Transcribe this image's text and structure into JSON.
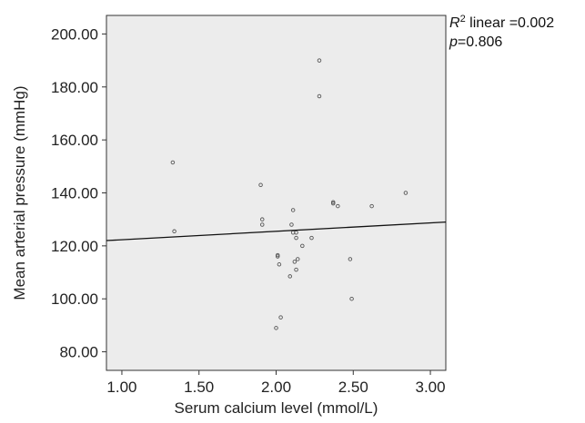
{
  "chart_data": {
    "type": "scatter",
    "title": "",
    "xlabel": "Serum calcium level (mmol/L)",
    "ylabel": "Mean arterial pressure (mmHg)",
    "xlim": [
      0.9,
      3.1
    ],
    "ylim": [
      73.0,
      207.0
    ],
    "x_ticks": [
      1.0,
      1.5,
      2.0,
      2.5,
      3.0
    ],
    "x_tick_labels": [
      "1.00",
      "1.50",
      "2.00",
      "2.50",
      "3.00"
    ],
    "y_ticks": [
      80,
      100,
      120,
      140,
      160,
      180,
      200
    ],
    "y_tick_labels": [
      "80.00",
      "100.00",
      "120.00",
      "140.00",
      "160.00",
      "180.00",
      "200.00"
    ],
    "grid": false,
    "plot_background": "#ececec",
    "point_color": "#555555",
    "fit_line_color": "#111111",
    "fit_line": {
      "x": [
        0.9,
        3.1
      ],
      "y": [
        122.0,
        129.0
      ]
    },
    "annotation": {
      "r2_symbol": "R",
      "r2_superscript": "2",
      "r2_text": " linear =0.002",
      "p_symbol": "p",
      "p_text": "=0.806"
    },
    "points": [
      {
        "x": 1.33,
        "y": 151.5
      },
      {
        "x": 1.34,
        "y": 125.5
      },
      {
        "x": 1.9,
        "y": 143.0
      },
      {
        "x": 1.91,
        "y": 130.0
      },
      {
        "x": 1.91,
        "y": 128.0
      },
      {
        "x": 2.01,
        "y": 116.5
      },
      {
        "x": 2.01,
        "y": 116.0
      },
      {
        "x": 2.02,
        "y": 113.0
      },
      {
        "x": 2.0,
        "y": 89.0
      },
      {
        "x": 2.03,
        "y": 93.0
      },
      {
        "x": 2.09,
        "y": 108.5
      },
      {
        "x": 2.1,
        "y": 128.0
      },
      {
        "x": 2.11,
        "y": 133.5
      },
      {
        "x": 2.11,
        "y": 125.0
      },
      {
        "x": 2.13,
        "y": 125.0
      },
      {
        "x": 2.13,
        "y": 123.0
      },
      {
        "x": 2.12,
        "y": 114.0
      },
      {
        "x": 2.14,
        "y": 115.0
      },
      {
        "x": 2.13,
        "y": 111.0
      },
      {
        "x": 2.17,
        "y": 120.0
      },
      {
        "x": 2.23,
        "y": 123.0
      },
      {
        "x": 2.28,
        "y": 190.0
      },
      {
        "x": 2.28,
        "y": 176.5
      },
      {
        "x": 2.37,
        "y": 136.5
      },
      {
        "x": 2.37,
        "y": 136.0
      },
      {
        "x": 2.4,
        "y": 135.0
      },
      {
        "x": 2.48,
        "y": 115.0
      },
      {
        "x": 2.49,
        "y": 100.0
      },
      {
        "x": 2.62,
        "y": 135.0
      },
      {
        "x": 2.84,
        "y": 140.0
      }
    ]
  }
}
